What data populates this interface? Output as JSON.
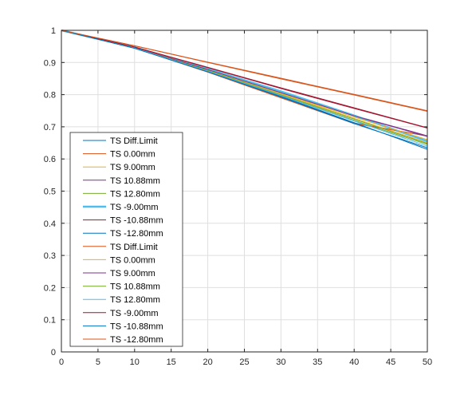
{
  "chart_data": {
    "type": "line",
    "title": "",
    "xlabel": "",
    "ylabel": "",
    "xlim": [
      0,
      50
    ],
    "ylim": [
      0,
      1
    ],
    "xticks": [
      "0",
      "5",
      "10",
      "15",
      "20",
      "25",
      "30",
      "35",
      "40",
      "45",
      "50"
    ],
    "yticks": [
      "0",
      "0.1",
      "0.2",
      "0.3",
      "0.4",
      "0.5",
      "0.6",
      "0.7",
      "0.8",
      "0.9",
      "1"
    ],
    "grid": true,
    "legend_position": "bottom-left",
    "series": [
      {
        "name": "TS Diff.Limit",
        "color": "#0072BD",
        "width": 1,
        "x": [
          0,
          10,
          20,
          30,
          40,
          50
        ],
        "y": [
          1.0,
          0.945,
          0.871,
          0.792,
          0.712,
          0.671
        ]
      },
      {
        "name": "TS 0.00mm",
        "color": "#D95319",
        "width": 1,
        "x": [
          0,
          10,
          20,
          30,
          40,
          50
        ],
        "y": [
          1.0,
          0.952,
          0.901,
          0.851,
          0.801,
          0.75
        ]
      },
      {
        "name": "TS 9.00mm",
        "color": "#EDB120",
        "width": 1,
        "x": [
          0,
          10,
          20,
          30,
          40,
          50
        ],
        "y": [
          1.0,
          0.946,
          0.877,
          0.803,
          0.726,
          0.65
        ]
      },
      {
        "name": "TS 10.88mm",
        "color": "#7E2F8E",
        "width": 1,
        "x": [
          0,
          10,
          20,
          30,
          40,
          50
        ],
        "y": [
          1.0,
          0.947,
          0.879,
          0.807,
          0.735,
          0.672
        ]
      },
      {
        "name": "TS 12.80mm",
        "color": "#77AC30",
        "width": 1,
        "x": [
          0,
          10,
          20,
          30,
          40,
          50
        ],
        "y": [
          1.0,
          0.945,
          0.874,
          0.798,
          0.72,
          0.645
        ]
      },
      {
        "name": "TS -9.00mm",
        "color": "#4DBEEE",
        "width": 2.5,
        "x": [
          0,
          10,
          20,
          30,
          40,
          50
        ],
        "y": [
          1.0,
          0.947,
          0.88,
          0.81,
          0.735,
          0.655
        ]
      },
      {
        "name": "TS -10.88mm",
        "color": "#A2142F",
        "width": 1,
        "x": [
          0,
          10,
          20,
          30,
          40,
          50
        ],
        "y": [
          1.0,
          0.948,
          0.885,
          0.821,
          0.759,
          0.697
        ]
      },
      {
        "name": "TS -12.80mm",
        "color": "#0072BD",
        "width": 1,
        "x": [
          0,
          10,
          20,
          30,
          40,
          50
        ],
        "y": [
          1.0,
          0.944,
          0.872,
          0.795,
          0.713,
          0.63
        ]
      },
      {
        "name": "TS Diff.Limit",
        "color": "#D95319",
        "width": 1,
        "x": [
          0,
          10,
          20,
          30,
          40,
          50
        ],
        "y": [
          1.0,
          0.945,
          0.87,
          0.79,
          0.71,
          0.672
        ]
      },
      {
        "name": "TS 0.00mm",
        "color": "#EDB120",
        "width": 1,
        "x": [
          0,
          10,
          20,
          30,
          40,
          50
        ],
        "y": [
          1.0,
          0.947,
          0.878,
          0.805,
          0.73,
          0.66
        ]
      },
      {
        "name": "TS 9.00mm",
        "color": "#7E2F8E",
        "width": 1,
        "x": [
          0,
          10,
          20,
          30,
          40,
          50
        ],
        "y": [
          1.0,
          0.946,
          0.878,
          0.806,
          0.734,
          0.67
        ]
      },
      {
        "name": "TS 10.88mm",
        "color": "#77AC30",
        "width": 1,
        "x": [
          0,
          10,
          20,
          30,
          40,
          50
        ],
        "y": [
          1.0,
          0.945,
          0.875,
          0.8,
          0.724,
          0.648
        ]
      },
      {
        "name": "TS 12.80mm",
        "color": "#4DBEEE",
        "width": 1,
        "x": [
          0,
          10,
          20,
          30,
          40,
          50
        ],
        "y": [
          1.0,
          0.945,
          0.873,
          0.797,
          0.718,
          0.64
        ]
      },
      {
        "name": "TS -9.00mm",
        "color": "#A2142F",
        "width": 1,
        "x": [
          0,
          10,
          20,
          30,
          40,
          50
        ],
        "y": [
          1.0,
          0.948,
          0.884,
          0.819,
          0.757,
          0.696
        ]
      },
      {
        "name": "TS -10.88mm",
        "color": "#0072BD",
        "width": 1,
        "x": [
          0,
          10,
          20,
          30,
          40,
          50
        ],
        "y": [
          1.0,
          0.944,
          0.871,
          0.793,
          0.71,
          0.635
        ]
      },
      {
        "name": "TS -12.80mm",
        "color": "#D95319",
        "width": 1,
        "x": [
          0,
          10,
          20,
          30,
          40,
          50
        ],
        "y": [
          1.0,
          0.952,
          0.9,
          0.849,
          0.799,
          0.748
        ]
      }
    ]
  },
  "colors": {
    "grid": "#dfdfdf",
    "axis": "#262626",
    "legend_border": "#262626",
    "background": "#ffffff"
  }
}
